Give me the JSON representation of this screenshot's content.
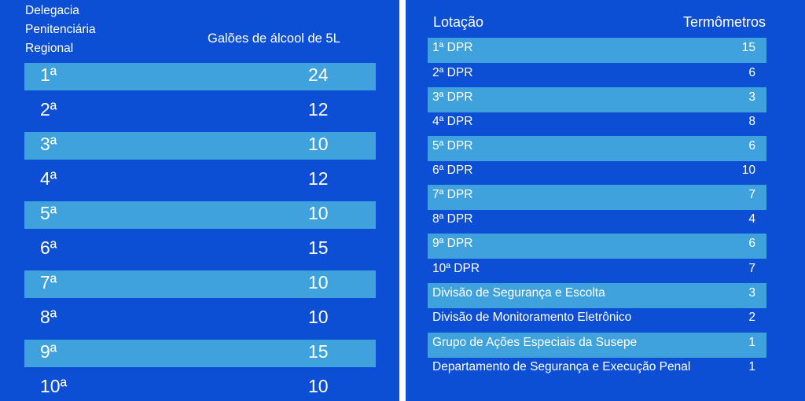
{
  "left_table": {
    "header": {
      "col1": "Delegacia Penitenciária Regional",
      "col2": "Galões de álcool de 5L"
    },
    "rows": [
      {
        "label": "1ª",
        "value": "24"
      },
      {
        "label": "2ª",
        "value": "12"
      },
      {
        "label": "3ª",
        "value": "10"
      },
      {
        "label": "4ª",
        "value": "12"
      },
      {
        "label": "5ª",
        "value": "10"
      },
      {
        "label": "6ª",
        "value": "15"
      },
      {
        "label": "7ª",
        "value": "10"
      },
      {
        "label": "8ª",
        "value": "10"
      },
      {
        "label": "9ª",
        "value": "15"
      },
      {
        "label": "10ª",
        "value": "10"
      }
    ]
  },
  "right_table": {
    "header": {
      "col1": "Lotação",
      "col2": "Termômetros"
    },
    "rows": [
      {
        "label": "1ª DPR",
        "value": "15"
      },
      {
        "label": "2ª DPR",
        "value": "6"
      },
      {
        "label": "3ª DPR",
        "value": "3"
      },
      {
        "label": "4ª DPR",
        "value": "8"
      },
      {
        "label": "5ª DPR",
        "value": "6"
      },
      {
        "label": "6ª DPR",
        "value": "10"
      },
      {
        "label": "7ª DPR",
        "value": "7"
      },
      {
        "label": "8ª DPR",
        "value": "4"
      },
      {
        "label": "9ª DPR",
        "value": "6"
      },
      {
        "label": "10ª DPR",
        "value": "7"
      },
      {
        "label": "Divisão de Segurança e Escolta",
        "value": "3"
      },
      {
        "label": "Divisão de Monitoramento Eletrônico",
        "value": "2"
      },
      {
        "label": "Grupo de Ações Especiais da Susepe",
        "value": "1"
      },
      {
        "label": "Departamento de Segurança e Execução Penal",
        "value": "1"
      }
    ]
  },
  "colors": {
    "panel_bg": "#0d4fd4",
    "stripe": "#3fa2dc",
    "text": "#ffffff"
  }
}
